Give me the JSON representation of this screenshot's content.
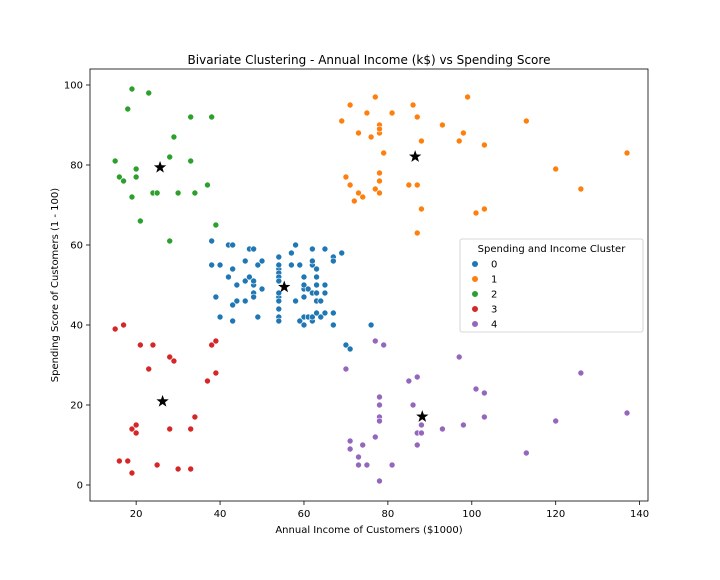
{
  "chart_data": {
    "type": "scatter",
    "title": "Bivariate Clustering - Annual Income (k$) vs Spending Score",
    "xlabel": "Annual Income of Customers ($1000)",
    "ylabel": "Spending Score of Customers (1 - 100)",
    "xlim": [
      9,
      142
    ],
    "ylim": [
      -4,
      104
    ],
    "xticks": [
      "20",
      "40",
      "60",
      "80",
      "100",
      "120",
      "140"
    ],
    "yticks": [
      "0",
      "20",
      "40",
      "60",
      "80",
      "100"
    ],
    "grid": false,
    "legend": {
      "title": "Spending and Income Cluster",
      "placement": "center-right"
    },
    "series": [
      {
        "name": "0",
        "color": "#1f77b4",
        "points": [
          [
            38,
            61
          ],
          [
            38,
            55
          ],
          [
            39,
            47
          ],
          [
            40,
            42
          ],
          [
            40,
            55
          ],
          [
            42,
            60
          ],
          [
            42,
            52
          ],
          [
            43,
            60
          ],
          [
            43,
            54
          ],
          [
            43,
            45
          ],
          [
            43,
            41
          ],
          [
            44,
            50
          ],
          [
            44,
            46
          ],
          [
            44,
            50
          ],
          [
            46,
            51
          ],
          [
            46,
            46
          ],
          [
            46,
            56
          ],
          [
            47,
            52
          ],
          [
            47,
            59
          ],
          [
            48,
            59
          ],
          [
            48,
            50
          ],
          [
            48,
            48
          ],
          [
            48,
            47
          ],
          [
            48,
            51
          ],
          [
            49,
            55
          ],
          [
            49,
            42
          ],
          [
            50,
            49
          ],
          [
            50,
            56
          ],
          [
            54,
            47
          ],
          [
            54,
            54
          ],
          [
            54,
            53
          ],
          [
            54,
            48
          ],
          [
            54,
            52
          ],
          [
            54,
            42
          ],
          [
            54,
            51
          ],
          [
            54,
            55
          ],
          [
            54,
            41
          ],
          [
            54,
            44
          ],
          [
            54,
            57
          ],
          [
            54,
            46
          ],
          [
            57,
            58
          ],
          [
            57,
            55
          ],
          [
            58,
            60
          ],
          [
            58,
            46
          ],
          [
            59,
            55
          ],
          [
            59,
            41
          ],
          [
            60,
            49
          ],
          [
            60,
            40
          ],
          [
            60,
            42
          ],
          [
            60,
            52
          ],
          [
            60,
            47
          ],
          [
            60,
            50
          ],
          [
            61,
            42
          ],
          [
            61,
            49
          ],
          [
            62,
            41
          ],
          [
            62,
            48
          ],
          [
            62,
            59
          ],
          [
            62,
            55
          ],
          [
            62,
            56
          ],
          [
            62,
            42
          ],
          [
            63,
            50
          ],
          [
            63,
            46
          ],
          [
            63,
            43
          ],
          [
            63,
            48
          ],
          [
            63,
            52
          ],
          [
            63,
            54
          ],
          [
            64,
            42
          ],
          [
            64,
            46
          ],
          [
            65,
            48
          ],
          [
            65,
            50
          ],
          [
            65,
            43
          ],
          [
            65,
            59
          ],
          [
            67,
            43
          ],
          [
            67,
            57
          ],
          [
            67,
            56
          ],
          [
            67,
            40
          ],
          [
            69,
            58
          ],
          [
            70,
            35
          ],
          [
            71,
            34
          ],
          [
            76,
            40
          ]
        ]
      },
      {
        "name": "1",
        "color": "#ff7f0e",
        "points": [
          [
            69,
            91
          ],
          [
            70,
            77
          ],
          [
            71,
            95
          ],
          [
            71,
            75
          ],
          [
            71,
            75
          ],
          [
            72,
            71
          ],
          [
            73,
            88
          ],
          [
            73,
            73
          ],
          [
            74,
            72
          ],
          [
            75,
            93
          ],
          [
            76,
            87
          ],
          [
            77,
            97
          ],
          [
            77,
            74
          ],
          [
            78,
            90
          ],
          [
            78,
            88
          ],
          [
            78,
            76
          ],
          [
            78,
            89
          ],
          [
            78,
            78
          ],
          [
            78,
            73
          ],
          [
            79,
            83
          ],
          [
            81,
            93
          ],
          [
            85,
            75
          ],
          [
            86,
            95
          ],
          [
            87,
            63
          ],
          [
            87,
            75
          ],
          [
            87,
            92
          ],
          [
            88,
            86
          ],
          [
            88,
            69
          ],
          [
            93,
            90
          ],
          [
            97,
            86
          ],
          [
            98,
            88
          ],
          [
            99,
            97
          ],
          [
            101,
            68
          ],
          [
            103,
            85
          ],
          [
            103,
            69
          ],
          [
            113,
            91
          ],
          [
            120,
            79
          ],
          [
            126,
            74
          ],
          [
            137,
            83
          ]
        ]
      },
      {
        "name": "2",
        "color": "#2ca02c",
        "points": [
          [
            15,
            81
          ],
          [
            16,
            77
          ],
          [
            17,
            76
          ],
          [
            18,
            94
          ],
          [
            19,
            72
          ],
          [
            19,
            99
          ],
          [
            20,
            77
          ],
          [
            20,
            79
          ],
          [
            21,
            66
          ],
          [
            23,
            98
          ],
          [
            24,
            73
          ],
          [
            25,
            73
          ],
          [
            28,
            82
          ],
          [
            28,
            61
          ],
          [
            29,
            87
          ],
          [
            30,
            73
          ],
          [
            33,
            92
          ],
          [
            33,
            81
          ],
          [
            34,
            73
          ],
          [
            37,
            75
          ],
          [
            38,
            92
          ],
          [
            39,
            65
          ]
        ]
      },
      {
        "name": "3",
        "color": "#d62728",
        "points": [
          [
            15,
            39
          ],
          [
            16,
            6
          ],
          [
            17,
            40
          ],
          [
            18,
            6
          ],
          [
            19,
            3
          ],
          [
            19,
            14
          ],
          [
            20,
            15
          ],
          [
            20,
            13
          ],
          [
            21,
            35
          ],
          [
            23,
            29
          ],
          [
            24,
            35
          ],
          [
            25,
            5
          ],
          [
            28,
            14
          ],
          [
            28,
            32
          ],
          [
            29,
            31
          ],
          [
            30,
            4
          ],
          [
            33,
            4
          ],
          [
            33,
            14
          ],
          [
            34,
            17
          ],
          [
            37,
            26
          ],
          [
            38,
            35
          ],
          [
            39,
            36
          ],
          [
            39,
            28
          ]
        ]
      },
      {
        "name": "4",
        "color": "#9467bd",
        "points": [
          [
            70,
            29
          ],
          [
            71,
            11
          ],
          [
            71,
            9
          ],
          [
            73,
            5
          ],
          [
            73,
            7
          ],
          [
            74,
            10
          ],
          [
            75,
            5
          ],
          [
            77,
            12
          ],
          [
            77,
            36
          ],
          [
            78,
            22
          ],
          [
            78,
            17
          ],
          [
            78,
            20
          ],
          [
            78,
            16
          ],
          [
            78,
            1
          ],
          [
            79,
            35
          ],
          [
            81,
            5
          ],
          [
            85,
            26
          ],
          [
            86,
            20
          ],
          [
            87,
            27
          ],
          [
            87,
            13
          ],
          [
            87,
            10
          ],
          [
            88,
            13
          ],
          [
            88,
            15
          ],
          [
            93,
            14
          ],
          [
            97,
            32
          ],
          [
            98,
            15
          ],
          [
            101,
            24
          ],
          [
            103,
            17
          ],
          [
            103,
            23
          ],
          [
            113,
            8
          ],
          [
            120,
            16
          ],
          [
            126,
            28
          ],
          [
            137,
            18
          ]
        ]
      }
    ],
    "centroids": [
      {
        "cluster": "0",
        "x": 55.3,
        "y": 49.5
      },
      {
        "cluster": "1",
        "x": 86.5,
        "y": 82.1
      },
      {
        "cluster": "2",
        "x": 25.7,
        "y": 79.4
      },
      {
        "cluster": "3",
        "x": 26.3,
        "y": 20.9
      },
      {
        "cluster": "4",
        "x": 88.2,
        "y": 17.1
      }
    ]
  }
}
